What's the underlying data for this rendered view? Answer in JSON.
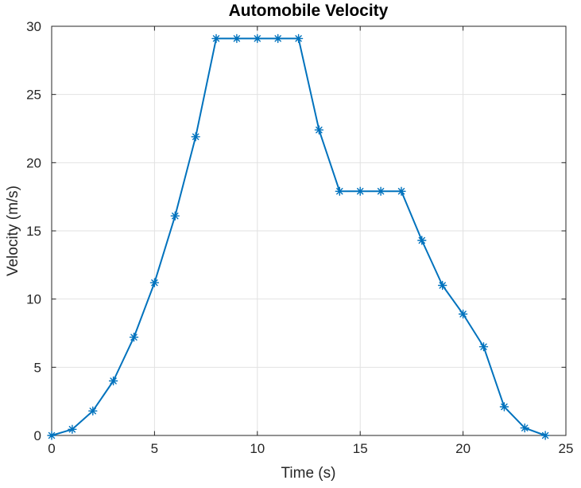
{
  "chart_data": {
    "type": "line",
    "title": "Automobile Velocity",
    "xlabel": "Time (s)",
    "ylabel": "Velocity (m/s)",
    "xlim": [
      0,
      25
    ],
    "ylim": [
      0,
      30
    ],
    "xticks": [
      0,
      5,
      10,
      15,
      20,
      25
    ],
    "yticks": [
      0,
      5,
      10,
      15,
      20,
      25,
      30
    ],
    "grid": true,
    "legend": "none",
    "marker": "asterisk",
    "line_color": "#0072BD",
    "axis_color": "#262626",
    "grid_color": "#E2E2E2",
    "x": [
      0,
      1,
      2,
      3,
      4,
      5,
      6,
      7,
      8,
      9,
      10,
      11,
      12,
      13,
      14,
      15,
      16,
      17,
      18,
      19,
      20,
      21,
      22,
      23,
      24
    ],
    "y": [
      0,
      0.45,
      1.8,
      4.0,
      7.2,
      11.2,
      16.1,
      21.9,
      29.1,
      29.1,
      29.1,
      29.1,
      29.1,
      22.4,
      17.9,
      17.9,
      17.9,
      17.9,
      14.3,
      11.0,
      8.9,
      6.5,
      2.1,
      0.55,
      0
    ]
  }
}
